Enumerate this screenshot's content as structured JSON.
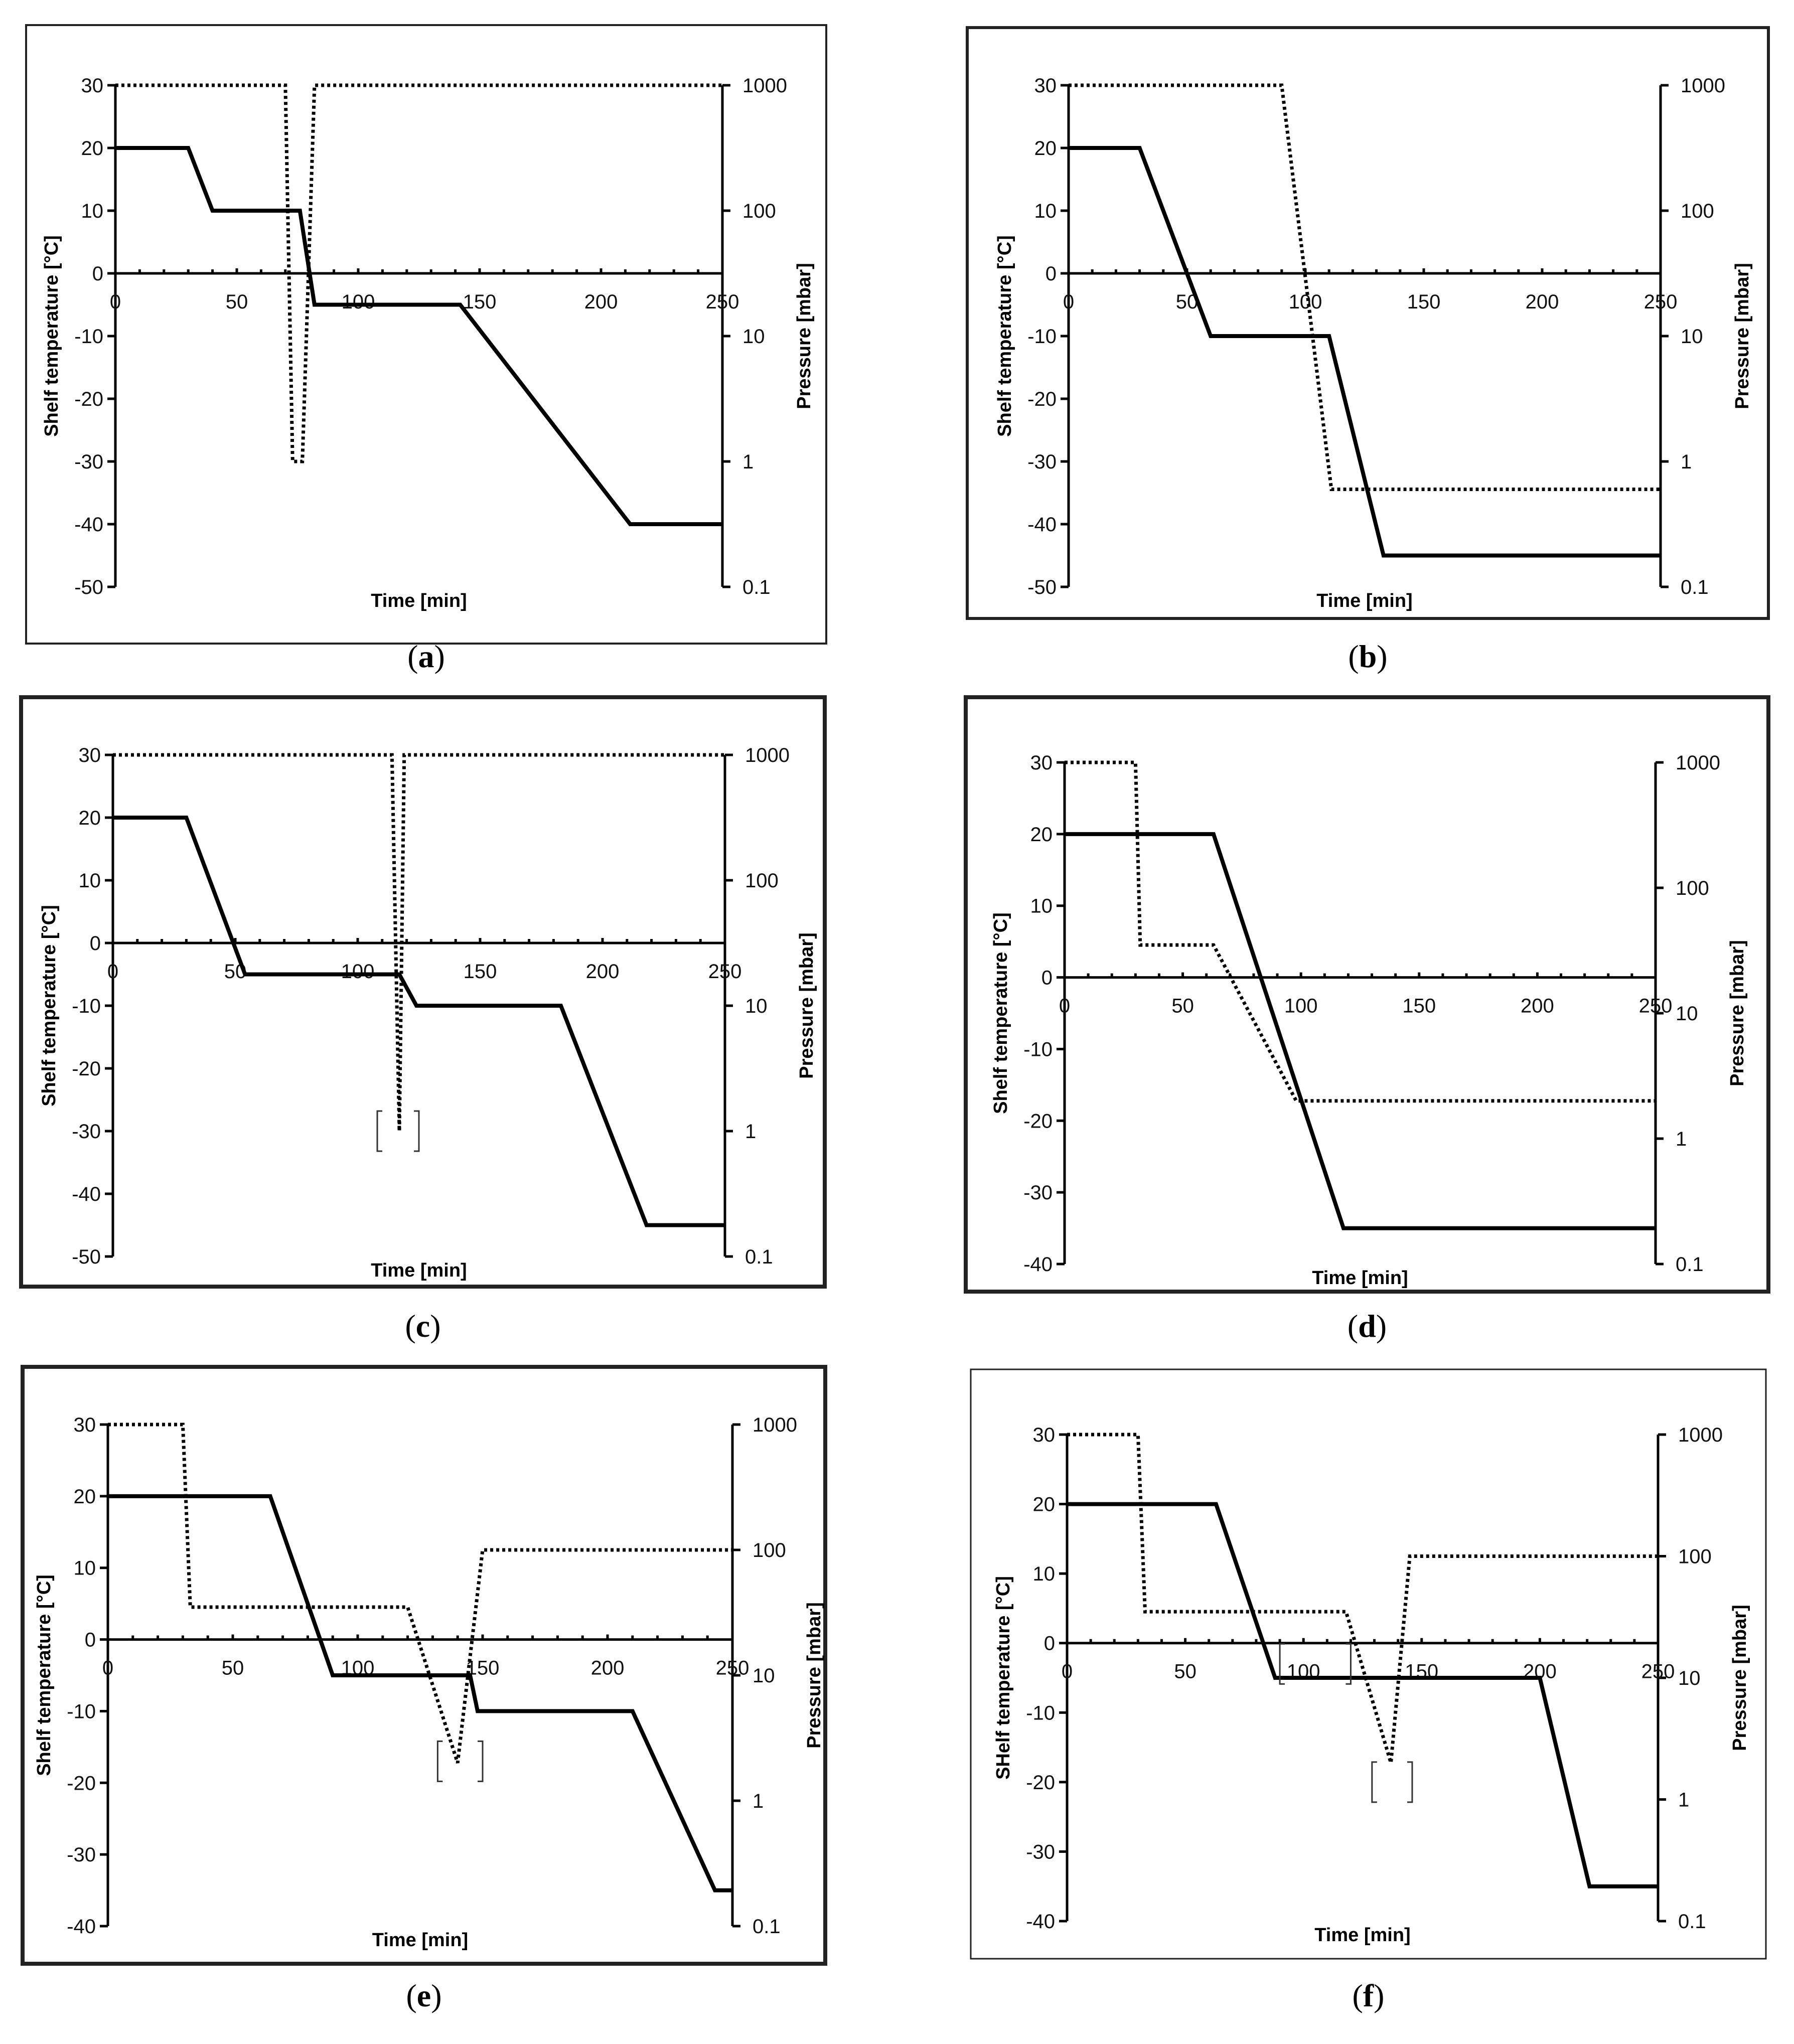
{
  "figure": {
    "colors": {
      "line": "#000000",
      "frame": "#222222",
      "background": "#ffffff"
    },
    "chart_data": [
      {
        "id": "a",
        "type": "line",
        "caption": {
          "open": "(",
          "letter": "a",
          "close": ")"
        },
        "xlabel": "Time [min]",
        "ylabel": "Shelf temperature [°C]",
        "y2label": "Pressure [mbar]",
        "xlim": [
          0,
          250
        ],
        "xticks": [
          0,
          50,
          100,
          150,
          200,
          250
        ],
        "xtick_labels": [
          "0",
          "50",
          "100",
          "150",
          "200",
          "250"
        ],
        "ylim": [
          -50,
          30
        ],
        "yticks": [
          30,
          20,
          10,
          0,
          -10,
          -20,
          -30,
          -40,
          -50
        ],
        "ytick_labels": [
          "30",
          "20",
          "10",
          "0",
          "-10",
          "-20",
          "-30",
          "-40",
          "-50"
        ],
        "y2ticks": [
          1000,
          100,
          10,
          1,
          0.1
        ],
        "y2tick_labels": [
          "1000",
          "100",
          "10",
          "1",
          "0.1"
        ],
        "series": [
          {
            "name": "Shelf temperature",
            "style": "solid",
            "axis": "left",
            "x": [
              0,
              30,
              40,
              76,
              82,
              142,
              212,
              250
            ],
            "y": [
              20,
              20,
              10,
              10,
              -5,
              -5,
              -40,
              -40
            ]
          },
          {
            "name": "Pressure",
            "style": "dotted",
            "axis": "right",
            "x": [
              0,
              70,
              73,
              77,
              82,
              250
            ],
            "y": [
              1000,
              1000,
              1,
              1,
              1000,
              1000
            ]
          }
        ],
        "brackets": []
      },
      {
        "id": "b",
        "type": "line",
        "caption": {
          "open": "(",
          "letter": "b",
          "close": ")"
        },
        "xlabel": "Time [min]",
        "ylabel": "Shelf temperature [°C]",
        "y2label": "Pressure [mbar]",
        "xlim": [
          0,
          250
        ],
        "xticks": [
          0,
          50,
          100,
          150,
          200,
          250
        ],
        "xtick_labels": [
          "0",
          "50",
          "100",
          "150",
          "200",
          "250"
        ],
        "ylim": [
          -50,
          30
        ],
        "yticks": [
          30,
          20,
          10,
          0,
          -10,
          -20,
          -30,
          -40,
          -50
        ],
        "ytick_labels": [
          "30",
          "20",
          "10",
          "0",
          "-10",
          "-20",
          "-30",
          "-40",
          "-50"
        ],
        "y2ticks": [
          1000,
          100,
          10,
          1,
          0.1
        ],
        "y2tick_labels": [
          "1000",
          "100",
          "10",
          "1",
          "0.1"
        ],
        "series": [
          {
            "name": "Shelf temperature",
            "style": "solid",
            "axis": "left",
            "x": [
              0,
              30,
              60,
              110,
              133,
              250
            ],
            "y": [
              20,
              20,
              -10,
              -10,
              -45,
              -45
            ]
          },
          {
            "name": "Pressure",
            "style": "dotted",
            "axis": "right",
            "x": [
              0,
              90,
              111,
              250
            ],
            "y": [
              1000,
              1000,
              0.6,
              0.6
            ]
          }
        ],
        "brackets": []
      },
      {
        "id": "c",
        "type": "line",
        "caption": {
          "open": "(",
          "letter": "c",
          "close": ")"
        },
        "xlabel": "Time [min]",
        "ylabel": "Shelf temperature [°C]",
        "y2label": "Pressure [mbar]",
        "xlim": [
          0,
          250
        ],
        "xticks": [
          0,
          50,
          100,
          150,
          200,
          250
        ],
        "xtick_labels": [
          "0",
          "50",
          "100",
          "150",
          "200",
          "250"
        ],
        "ylim": [
          -50,
          30
        ],
        "yticks": [
          30,
          20,
          10,
          0,
          -10,
          -20,
          -30,
          -40,
          -50
        ],
        "ytick_labels": [
          "30",
          "20",
          "10",
          "0",
          "-10",
          "-20",
          "-30",
          "-40",
          "-50"
        ],
        "y2ticks": [
          1000,
          100,
          10,
          1,
          0.1
        ],
        "y2tick_labels": [
          "1000",
          "100",
          "10",
          "1",
          "0.1"
        ],
        "series": [
          {
            "name": "Shelf temperature",
            "style": "solid",
            "axis": "left",
            "x": [
              0,
              30,
              54,
              117,
              124,
              183,
              218,
              250
            ],
            "y": [
              20,
              20,
              -5,
              -5,
              -10,
              -10,
              -45,
              -45
            ]
          },
          {
            "name": "Pressure",
            "style": "dotted",
            "axis": "right",
            "x": [
              0,
              114,
              117,
              119,
              250
            ],
            "y": [
              1000,
              1000,
              1,
              1000,
              1000
            ]
          }
        ],
        "brackets": [
          {
            "x1": 108,
            "x2": 125,
            "y": -30
          }
        ]
      },
      {
        "id": "d",
        "type": "line",
        "caption": {
          "open": "(",
          "letter": "d",
          "close": ")"
        },
        "xlabel": "Time [min]",
        "ylabel": "Shelf temperature [°C]",
        "y2label": "Pressure [mbar]",
        "xlim": [
          0,
          250
        ],
        "xticks": [
          0,
          50,
          100,
          150,
          200,
          250
        ],
        "xtick_labels": [
          "0",
          "50",
          "100",
          "150",
          "200",
          "250"
        ],
        "ylim": [
          -40,
          30
        ],
        "yticks": [
          30,
          20,
          10,
          0,
          -10,
          -20,
          -30,
          -40
        ],
        "ytick_labels": [
          "30",
          "20",
          "10",
          "0",
          "-10",
          "-20",
          "-30",
          "-40"
        ],
        "y2ticks": [
          1000,
          100,
          10,
          1,
          0.1
        ],
        "y2tick_labels": [
          "1000",
          "100",
          "10",
          "1",
          "0.1"
        ],
        "series": [
          {
            "name": "Shelf temperature",
            "style": "solid",
            "axis": "left",
            "x": [
              0,
              63,
              118,
              250
            ],
            "y": [
              20,
              20,
              -35,
              -35
            ]
          },
          {
            "name": "Pressure",
            "style": "dotted",
            "axis": "right",
            "x": [
              0,
              30,
              32,
              63,
              98,
              250
            ],
            "y": [
              1000,
              1000,
              35,
              35,
              2,
              2
            ]
          }
        ],
        "brackets": []
      },
      {
        "id": "e",
        "type": "line",
        "caption": {
          "open": "(",
          "letter": "e",
          "close": ")"
        },
        "xlabel": "Time [min]",
        "ylabel": "Shelf temperature [°C]",
        "y2label": "Pressure [mbar]",
        "xlim": [
          0,
          250
        ],
        "xticks": [
          0,
          50,
          100,
          150,
          200,
          250
        ],
        "xtick_labels": [
          "0",
          "50",
          "100",
          "150",
          "200",
          "250"
        ],
        "ylim": [
          -40,
          30
        ],
        "yticks": [
          30,
          20,
          10,
          0,
          -10,
          -20,
          -30,
          -40
        ],
        "ytick_labels": [
          "30",
          "20",
          "10",
          "0",
          "-10",
          "-20",
          "-30",
          "-40"
        ],
        "y2ticks": [
          1000,
          100,
          10,
          1,
          0.1
        ],
        "y2tick_labels": [
          "1000",
          "100",
          "10",
          "1",
          "0.1"
        ],
        "series": [
          {
            "name": "Shelf temperature",
            "style": "solid",
            "axis": "left",
            "x": [
              0,
              65,
              90,
              145,
              148,
              210,
              243,
              250
            ],
            "y": [
              20,
              20,
              -5,
              -5,
              -10,
              -10,
              -35,
              -35
            ]
          },
          {
            "name": "Pressure",
            "style": "dotted",
            "axis": "right",
            "x": [
              0,
              30,
              33,
              120,
              140,
              150,
              250
            ],
            "y": [
              1000,
              1000,
              35,
              35,
              2,
              100,
              100
            ]
          }
        ],
        "brackets": [
          {
            "x1": 132,
            "x2": 150,
            "y": -17
          }
        ]
      },
      {
        "id": "f",
        "type": "line",
        "caption": {
          "open": "(",
          "letter": "f",
          "close": ")"
        },
        "xlabel": "Time [min]",
        "ylabel": "SHelf temperature [°C]",
        "y2label": "Pressure [mbar]",
        "xlim": [
          0,
          250
        ],
        "xticks": [
          0,
          50,
          100,
          150,
          200,
          250
        ],
        "xtick_labels": [
          "0",
          "50",
          "100",
          "150",
          "200",
          "250"
        ],
        "ylim": [
          -40,
          30
        ],
        "yticks": [
          30,
          20,
          10,
          0,
          -10,
          -20,
          -30,
          -40
        ],
        "ytick_labels": [
          "30",
          "20",
          "10",
          "0",
          "-10",
          "-20",
          "-30",
          "-40"
        ],
        "y2ticks": [
          1000,
          100,
          10,
          1,
          0.1
        ],
        "y2tick_labels": [
          "1000",
          "100",
          "10",
          "1",
          "0.1"
        ],
        "series": [
          {
            "name": "Shelf temperature",
            "style": "solid",
            "axis": "left",
            "x": [
              0,
              63,
              88,
              200,
              221,
              250
            ],
            "y": [
              20,
              20,
              -5,
              -5,
              -35,
              -35
            ]
          },
          {
            "name": "Pressure",
            "style": "dotted",
            "axis": "right",
            "x": [
              0,
              30,
              33,
              118,
              137,
              145,
              250
            ],
            "y": [
              1000,
              1000,
              35,
              35,
              2,
              100,
              100
            ]
          }
        ],
        "brackets": [
          {
            "x1": 90,
            "x2": 120,
            "y": -3
          },
          {
            "x1": 129,
            "x2": 146,
            "y": -20
          }
        ]
      }
    ]
  }
}
